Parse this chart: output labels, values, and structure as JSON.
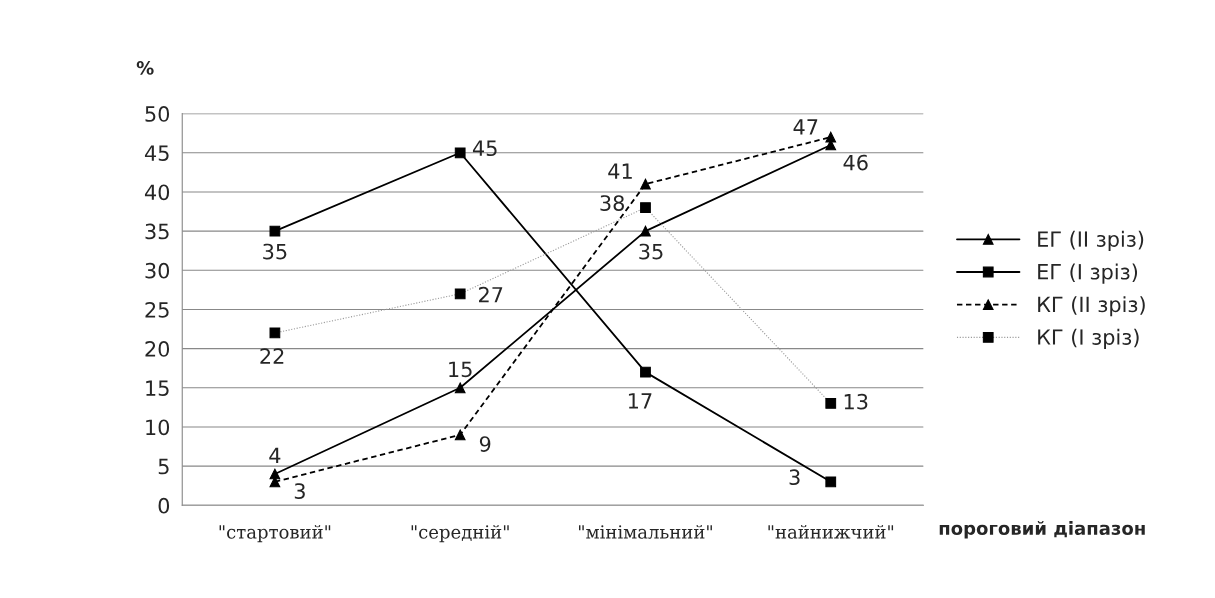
{
  "chart_data": {
    "type": "line",
    "ylabel": "%",
    "xlabel": "пороговий діапазон",
    "categories": [
      "\"стартовий\"",
      "\"середній\"",
      "\"мінімальний\"",
      "\"найнижчий\""
    ],
    "series": [
      {
        "name": "ЕГ (ІІ зріз)",
        "color": "#000000",
        "values": [
          4,
          15,
          35,
          46
        ],
        "marker": "triangle",
        "line_style": "solid"
      },
      {
        "name": "ЕГ (І зріз)",
        "color": "#000000",
        "values": [
          35,
          45,
          17,
          3
        ],
        "marker": "square",
        "line_style": "solid"
      },
      {
        "name": "КГ (ІІ зріз)",
        "color": "#000000",
        "values": [
          3,
          9,
          41,
          47
        ],
        "marker": "triangle",
        "line_style": "dashed"
      },
      {
        "name": "КГ (І зріз)",
        "color": "#999999",
        "values": [
          22,
          27,
          38,
          13
        ],
        "marker": "square",
        "line_style": "dotted"
      }
    ],
    "ylim": [
      0,
      50
    ],
    "yticks": [
      0,
      5,
      10,
      15,
      20,
      25,
      30,
      35,
      40,
      45,
      50
    ],
    "grid": "y",
    "legend": "right",
    "data_labels": true
  }
}
